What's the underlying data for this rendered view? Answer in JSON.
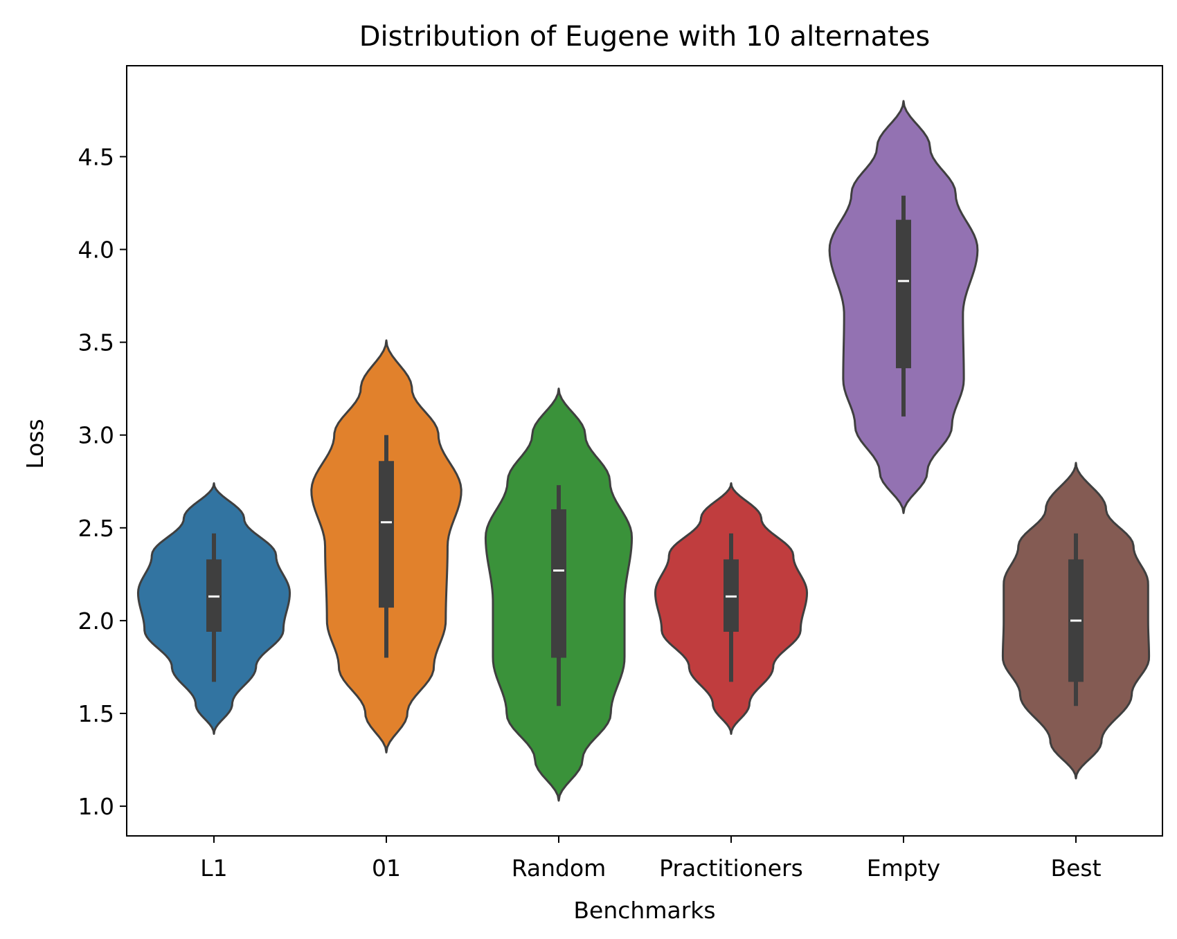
{
  "chart_data": {
    "type": "violin",
    "title": "Distribution of Eugene with 10 alternates",
    "xlabel": "Benchmarks",
    "ylabel": "Loss",
    "ylim": [
      0.84,
      4.99
    ],
    "yticks": [
      1.0,
      1.5,
      2.0,
      2.5,
      3.0,
      3.5,
      4.0,
      4.5
    ],
    "ytick_labels": [
      "1.0",
      "1.5",
      "2.0",
      "2.5",
      "3.0",
      "3.5",
      "4.0",
      "4.5"
    ],
    "grid": false,
    "legend": "none",
    "categories": [
      "L1",
      "01",
      "Random",
      "Practitioners",
      "Empty",
      "Best"
    ],
    "series": [
      {
        "label": "L1",
        "color": "#3274a1",
        "kde_min": 1.39,
        "kde_max": 2.74,
        "whisker_low": 1.67,
        "q1": 1.94,
        "median": 2.13,
        "q3": 2.33,
        "whisker_high": 2.47,
        "profile": [
          [
            1.39,
            0.0
          ],
          [
            1.55,
            0.2
          ],
          [
            1.75,
            0.46
          ],
          [
            1.95,
            0.76
          ],
          [
            2.15,
            0.83
          ],
          [
            2.35,
            0.68
          ],
          [
            2.55,
            0.33
          ],
          [
            2.74,
            0.0
          ]
        ]
      },
      {
        "label": "01",
        "color": "#e1812c",
        "kde_min": 1.29,
        "kde_max": 3.51,
        "whisker_low": 1.8,
        "q1": 2.07,
        "median": 2.53,
        "q3": 2.86,
        "whisker_high": 3.0,
        "profile": [
          [
            1.29,
            0.0
          ],
          [
            1.5,
            0.23
          ],
          [
            1.75,
            0.52
          ],
          [
            2.0,
            0.65
          ],
          [
            2.4,
            0.67
          ],
          [
            2.7,
            0.82
          ],
          [
            3.0,
            0.57
          ],
          [
            3.25,
            0.28
          ],
          [
            3.51,
            0.0
          ]
        ]
      },
      {
        "label": "Random",
        "color": "#3a923a",
        "kde_min": 1.03,
        "kde_max": 3.25,
        "whisker_low": 1.54,
        "q1": 1.8,
        "median": 2.27,
        "q3": 2.6,
        "whisker_high": 2.73,
        "profile": [
          [
            1.03,
            0.0
          ],
          [
            1.25,
            0.26
          ],
          [
            1.5,
            0.57
          ],
          [
            1.8,
            0.72
          ],
          [
            2.1,
            0.72
          ],
          [
            2.45,
            0.8
          ],
          [
            2.75,
            0.56
          ],
          [
            3.0,
            0.29
          ],
          [
            3.25,
            0.0
          ]
        ]
      },
      {
        "label": "Practitioners",
        "color": "#c03d3e",
        "kde_min": 1.39,
        "kde_max": 2.74,
        "whisker_low": 1.67,
        "q1": 1.94,
        "median": 2.13,
        "q3": 2.33,
        "whisker_high": 2.47,
        "profile": [
          [
            1.39,
            0.0
          ],
          [
            1.55,
            0.2
          ],
          [
            1.75,
            0.46
          ],
          [
            1.95,
            0.76
          ],
          [
            2.15,
            0.83
          ],
          [
            2.35,
            0.68
          ],
          [
            2.55,
            0.33
          ],
          [
            2.74,
            0.0
          ]
        ]
      },
      {
        "label": "Empty",
        "color": "#9372b2",
        "kde_min": 2.58,
        "kde_max": 4.8,
        "whisker_low": 3.1,
        "q1": 3.36,
        "median": 3.83,
        "q3": 4.16,
        "whisker_high": 4.29,
        "profile": [
          [
            2.58,
            0.0
          ],
          [
            2.8,
            0.26
          ],
          [
            3.05,
            0.53
          ],
          [
            3.3,
            0.66
          ],
          [
            3.65,
            0.65
          ],
          [
            4.0,
            0.81
          ],
          [
            4.3,
            0.57
          ],
          [
            4.55,
            0.29
          ],
          [
            4.8,
            0.0
          ]
        ]
      },
      {
        "label": "Best",
        "color": "#845b53",
        "kde_min": 1.15,
        "kde_max": 2.85,
        "whisker_low": 1.54,
        "q1": 1.67,
        "median": 2.0,
        "q3": 2.33,
        "whisker_high": 2.47,
        "profile": [
          [
            1.15,
            0.0
          ],
          [
            1.35,
            0.28
          ],
          [
            1.6,
            0.61
          ],
          [
            1.8,
            0.8
          ],
          [
            2.0,
            0.79
          ],
          [
            2.2,
            0.79
          ],
          [
            2.4,
            0.63
          ],
          [
            2.6,
            0.33
          ],
          [
            2.85,
            0.0
          ]
        ]
      }
    ]
  }
}
